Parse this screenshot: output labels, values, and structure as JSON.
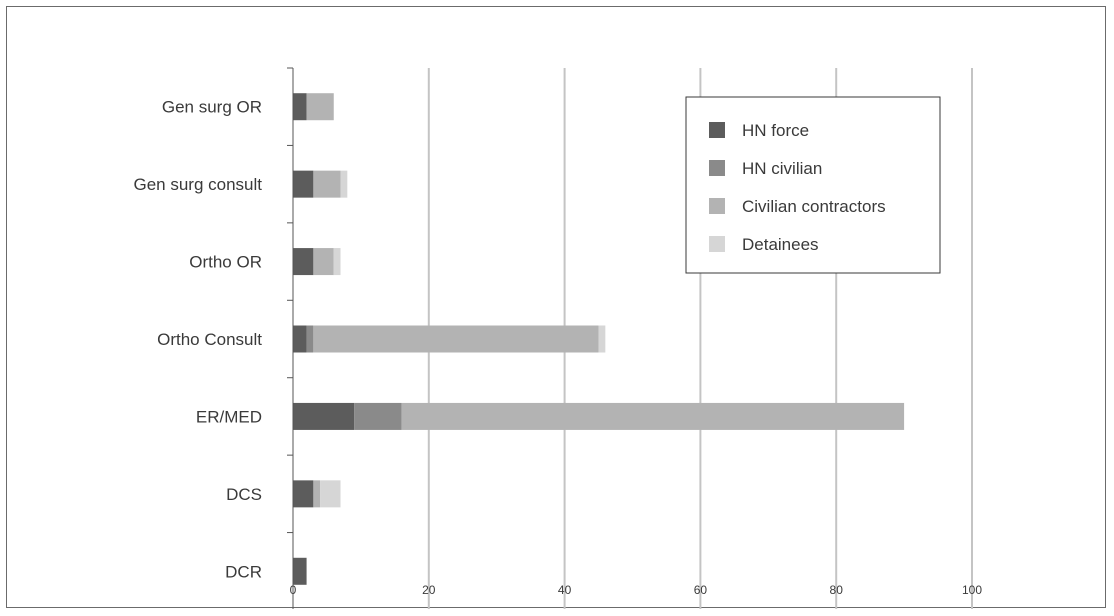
{
  "chart_data": {
    "type": "bar",
    "orientation": "horizontal",
    "stacked": true,
    "title": "",
    "xlabel": "",
    "ylabel": "",
    "xlim": [
      0,
      100
    ],
    "x_ticks": [
      0,
      20,
      40,
      60,
      80,
      100
    ],
    "grid": "vertical",
    "legend_position": "top-right",
    "categories": [
      "Gen surg OR",
      "Gen surg consult",
      "Ortho OR",
      "Ortho Consult",
      "ER/MED",
      "DCS",
      "DCR"
    ],
    "series": [
      {
        "name": "HN force",
        "color": "#5c5c5c",
        "values": [
          2,
          3,
          3,
          2,
          9,
          3,
          2
        ]
      },
      {
        "name": "HN civilian",
        "color": "#8a8a8a",
        "values": [
          0,
          0,
          0,
          1,
          7,
          0,
          0
        ]
      },
      {
        "name": "Civilian contractors",
        "color": "#b3b3b3",
        "values": [
          4,
          4,
          3,
          42,
          74,
          1,
          0
        ]
      },
      {
        "name": "Detainees",
        "color": "#d6d6d6",
        "values": [
          0,
          1,
          1,
          1,
          0,
          3,
          0
        ]
      }
    ]
  }
}
